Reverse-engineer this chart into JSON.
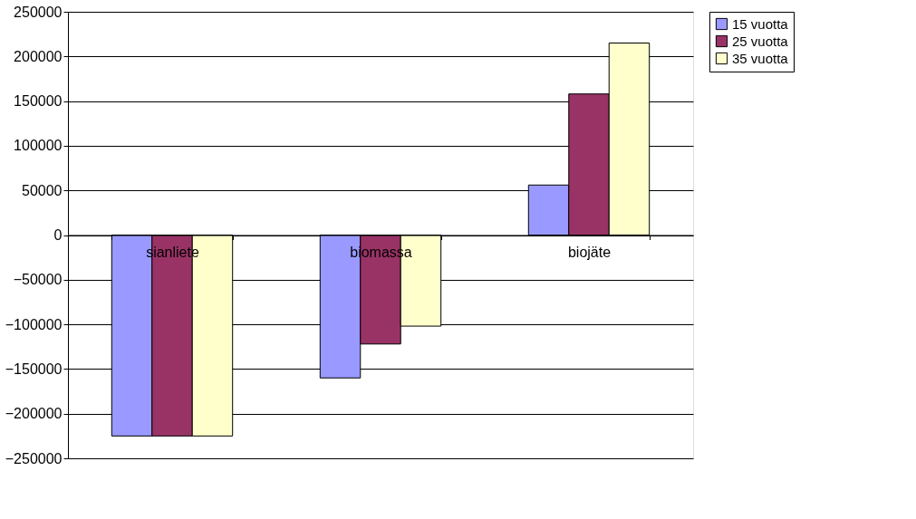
{
  "chart_data": {
    "type": "bar",
    "categories": [
      "sianliete",
      "biomassa",
      "biojäte"
    ],
    "series": [
      {
        "name": "15 vuotta",
        "color": "#9999ff",
        "values": [
          -225000,
          -160000,
          56000
        ]
      },
      {
        "name": "25 vuotta",
        "color": "#993366",
        "values": [
          -225000,
          -122000,
          158000
        ]
      },
      {
        "name": "35 vuotta",
        "color": "#ffffcc",
        "values": [
          -225000,
          -102000,
          215000
        ]
      }
    ],
    "ylim": [
      -250000,
      250000
    ],
    "yticks": [
      -250000,
      -200000,
      -150000,
      -100000,
      -50000,
      0,
      50000,
      100000,
      150000,
      200000,
      250000
    ],
    "grid": "y",
    "legend": "right"
  }
}
